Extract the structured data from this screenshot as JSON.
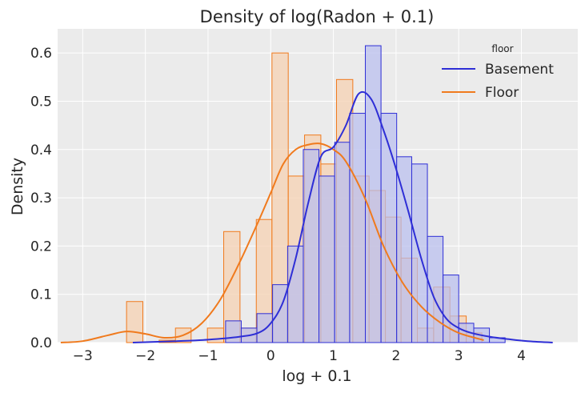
{
  "chart_data": {
    "type": "histogram",
    "title": "Density of log(Radon + 0.1)",
    "xlabel": "log + 0.1",
    "ylabel": "Density",
    "xlim": [
      -3.4,
      4.9
    ],
    "ylim": [
      0,
      0.65
    ],
    "xticks": [
      -3,
      -2,
      -1,
      0,
      1,
      2,
      3,
      4
    ],
    "xtick_labels": [
      "−3",
      "−2",
      "−1",
      "0",
      "1",
      "2",
      "3",
      "4"
    ],
    "yticks": [
      0.0,
      0.1,
      0.2,
      0.3,
      0.4,
      0.5,
      0.6
    ],
    "ytick_labels": [
      "0.0",
      "0.1",
      "0.2",
      "0.3",
      "0.4",
      "0.5",
      "0.6"
    ],
    "grid": true,
    "background": "#EBEBEB",
    "legend": {
      "title": "floor",
      "placement": "top-right",
      "entries": [
        "Basement",
        "Floor"
      ]
    },
    "series": [
      {
        "name": "Basement",
        "color": "#2E2ED6",
        "fill": "#B8BEEE",
        "bin_edges": [
          -0.72,
          -0.47,
          -0.22,
          0.03,
          0.27,
          0.52,
          0.77,
          1.02,
          1.26,
          1.51,
          1.76,
          2.01,
          2.25,
          2.5,
          2.75,
          3.0,
          3.24,
          3.49,
          3.74
        ],
        "densities": [
          0.045,
          0.03,
          0.06,
          0.12,
          0.2,
          0.4,
          0.345,
          0.415,
          0.475,
          0.615,
          0.475,
          0.385,
          0.37,
          0.22,
          0.14,
          0.04,
          0.03,
          0.01
        ],
        "kde_x": [
          -2.2,
          -1.5,
          -1.0,
          -0.5,
          -0.2,
          0.0,
          0.2,
          0.4,
          0.6,
          0.8,
          1.0,
          1.2,
          1.4,
          1.6,
          1.8,
          2.0,
          2.2,
          2.4,
          2.6,
          2.8,
          3.0,
          3.2,
          3.5,
          3.8,
          4.1,
          4.5
        ],
        "kde_y": [
          0.0,
          0.003,
          0.006,
          0.012,
          0.02,
          0.04,
          0.085,
          0.175,
          0.29,
          0.385,
          0.405,
          0.45,
          0.515,
          0.505,
          0.44,
          0.36,
          0.27,
          0.175,
          0.095,
          0.05,
          0.03,
          0.02,
          0.012,
          0.007,
          0.003,
          0.0
        ]
      },
      {
        "name": "Floor",
        "color": "#F07A1D",
        "fill": "#F5D0B0",
        "bin_edges": [
          -2.3,
          -2.04,
          -1.78,
          -1.52,
          -1.27,
          -1.01,
          -0.75,
          -0.49,
          -0.23,
          0.02,
          0.28,
          0.54,
          0.8,
          1.05,
          1.31,
          1.57,
          1.83,
          2.08,
          2.34,
          2.6,
          2.86,
          3.12,
          3.37
        ],
        "densities": [
          0.085,
          0.0,
          0.005,
          0.03,
          0.0,
          0.03,
          0.23,
          0.03,
          0.255,
          0.6,
          0.345,
          0.43,
          0.37,
          0.545,
          0.345,
          0.315,
          0.26,
          0.175,
          0.03,
          0.115,
          0.055,
          0.02
        ],
        "kde_x": [
          -3.35,
          -3.0,
          -2.6,
          -2.3,
          -2.0,
          -1.7,
          -1.4,
          -1.1,
          -0.8,
          -0.5,
          -0.2,
          0.0,
          0.2,
          0.4,
          0.6,
          0.8,
          1.0,
          1.2,
          1.5,
          1.8,
          2.1,
          2.4,
          2.7,
          3.0,
          3.4
        ],
        "kde_y": [
          0.0,
          0.003,
          0.015,
          0.023,
          0.018,
          0.01,
          0.015,
          0.04,
          0.09,
          0.165,
          0.25,
          0.31,
          0.37,
          0.4,
          0.41,
          0.412,
          0.4,
          0.375,
          0.3,
          0.2,
          0.125,
          0.075,
          0.042,
          0.02,
          0.005
        ]
      }
    ]
  }
}
